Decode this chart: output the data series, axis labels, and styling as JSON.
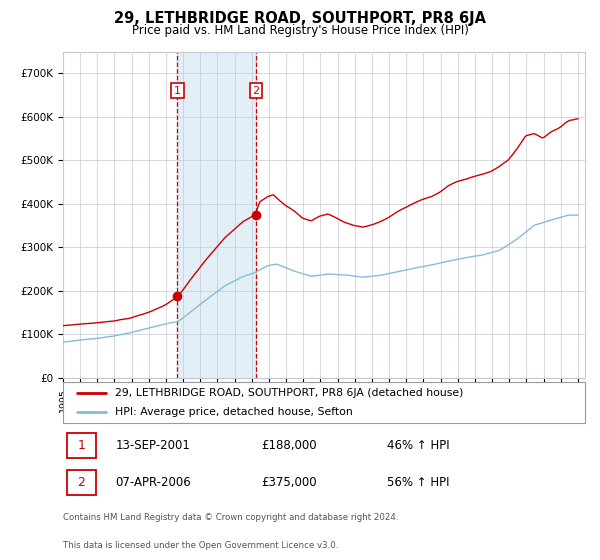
{
  "title": "29, LETHBRIDGE ROAD, SOUTHPORT, PR8 6JA",
  "subtitle": "Price paid vs. HM Land Registry's House Price Index (HPI)",
  "legend_line1": "29, LETHBRIDGE ROAD, SOUTHPORT, PR8 6JA (detached house)",
  "legend_line2": "HPI: Average price, detached house, Sefton",
  "sale1_label": "1",
  "sale1_date": "13-SEP-2001",
  "sale1_price": "£188,000",
  "sale1_hpi": "46% ↑ HPI",
  "sale2_label": "2",
  "sale2_date": "07-APR-2006",
  "sale2_price": "£375,000",
  "sale2_hpi": "56% ↑ HPI",
  "footnote_line1": "Contains HM Land Registry data © Crown copyright and database right 2024.",
  "footnote_line2": "This data is licensed under the Open Government Licence v3.0.",
  "red_color": "#cc0000",
  "blue_color": "#88bbd8",
  "bg_shade_color": "#daeaf5",
  "grid_color": "#c8c8d8",
  "ylim": [
    0,
    750000
  ],
  "yticks": [
    0,
    100000,
    200000,
    300000,
    400000,
    500000,
    600000,
    700000
  ],
  "ytick_labels": [
    "£0",
    "£100K",
    "£200K",
    "£300K",
    "£400K",
    "£500K",
    "£600K",
    "£700K"
  ],
  "waypoints_hpi": [
    [
      1995.0,
      82000
    ],
    [
      1996.0,
      87000
    ],
    [
      1997.0,
      91000
    ],
    [
      1998.0,
      96000
    ],
    [
      1999.0,
      104000
    ],
    [
      2000.0,
      114000
    ],
    [
      2001.0,
      124000
    ],
    [
      2001.75,
      129000
    ],
    [
      2002.5,
      152000
    ],
    [
      2003.5,
      183000
    ],
    [
      2004.5,
      212000
    ],
    [
      2005.5,
      232000
    ],
    [
      2006.25,
      242000
    ],
    [
      2007.0,
      258000
    ],
    [
      2007.5,
      261000
    ],
    [
      2008.5,
      245000
    ],
    [
      2009.5,
      233000
    ],
    [
      2010.5,
      238000
    ],
    [
      2011.5,
      236000
    ],
    [
      2012.5,
      231000
    ],
    [
      2013.5,
      235000
    ],
    [
      2014.5,
      243000
    ],
    [
      2015.5,
      252000
    ],
    [
      2016.5,
      259000
    ],
    [
      2017.5,
      268000
    ],
    [
      2018.5,
      276000
    ],
    [
      2019.5,
      282000
    ],
    [
      2020.5,
      293000
    ],
    [
      2021.5,
      318000
    ],
    [
      2022.5,
      350000
    ],
    [
      2023.5,
      362000
    ],
    [
      2024.5,
      373000
    ]
  ],
  "waypoints_red": [
    [
      1995.0,
      120000
    ],
    [
      1996.0,
      124000
    ],
    [
      1997.0,
      127000
    ],
    [
      1998.0,
      132000
    ],
    [
      1999.0,
      139000
    ],
    [
      2000.0,
      151000
    ],
    [
      2001.0,
      169000
    ],
    [
      2001.75,
      188000
    ],
    [
      2002.5,
      228000
    ],
    [
      2003.5,
      278000
    ],
    [
      2004.5,
      323000
    ],
    [
      2005.5,
      358000
    ],
    [
      2006.25,
      375000
    ],
    [
      2006.5,
      405000
    ],
    [
      2007.0,
      418000
    ],
    [
      2007.3,
      422000
    ],
    [
      2007.7,
      408000
    ],
    [
      2008.0,
      398000
    ],
    [
      2008.5,
      385000
    ],
    [
      2009.0,
      368000
    ],
    [
      2009.5,
      362000
    ],
    [
      2010.0,
      373000
    ],
    [
      2010.5,
      378000
    ],
    [
      2011.0,
      368000
    ],
    [
      2011.5,
      358000
    ],
    [
      2012.0,
      352000
    ],
    [
      2012.5,
      348000
    ],
    [
      2013.0,
      353000
    ],
    [
      2013.5,
      360000
    ],
    [
      2014.0,
      370000
    ],
    [
      2014.5,
      383000
    ],
    [
      2015.0,
      393000
    ],
    [
      2015.5,
      403000
    ],
    [
      2016.0,
      412000
    ],
    [
      2016.5,
      418000
    ],
    [
      2017.0,
      428000
    ],
    [
      2017.5,
      443000
    ],
    [
      2018.0,
      452000
    ],
    [
      2018.5,
      458000
    ],
    [
      2019.0,
      465000
    ],
    [
      2019.5,
      470000
    ],
    [
      2020.0,
      476000
    ],
    [
      2020.5,
      488000
    ],
    [
      2021.0,
      503000
    ],
    [
      2021.5,
      528000
    ],
    [
      2022.0,
      558000
    ],
    [
      2022.5,
      563000
    ],
    [
      2023.0,
      553000
    ],
    [
      2023.5,
      568000
    ],
    [
      2024.0,
      578000
    ],
    [
      2024.5,
      593000
    ],
    [
      2025.0,
      598000
    ]
  ]
}
